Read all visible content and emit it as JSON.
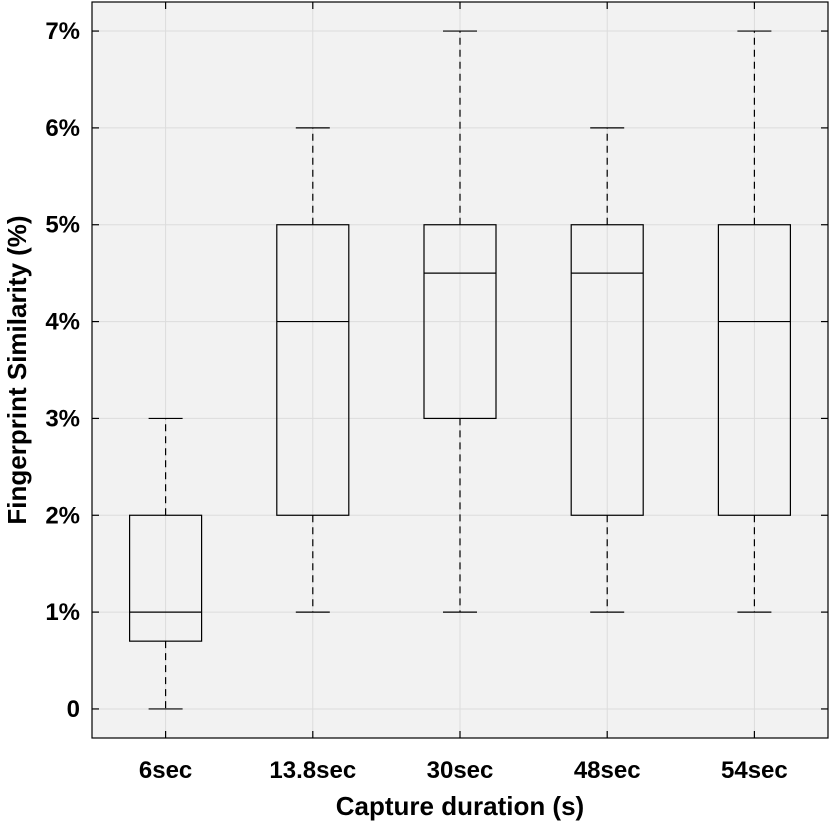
{
  "chart_data": {
    "type": "box",
    "xlabel": "Capture duration (s)",
    "ylabel": "Fingerprint Similarity (%)",
    "ylim": [
      -0.3,
      7.3
    ],
    "y_ticks": [
      0,
      1,
      2,
      3,
      4,
      5,
      6,
      7
    ],
    "y_tick_labels": [
      "0",
      "1%",
      "2%",
      "3%",
      "4%",
      "5%",
      "6%",
      "7%"
    ],
    "grid": true,
    "categories": [
      "6sec",
      "13.8sec",
      "30sec",
      "48sec",
      "54sec"
    ],
    "boxes": [
      {
        "category": "6sec",
        "min": 0,
        "q1": 0.7,
        "median": 1.0,
        "q3": 2.0,
        "max": 3.0
      },
      {
        "category": "13.8sec",
        "min": 1.0,
        "q1": 2.0,
        "median": 4.0,
        "q3": 5.0,
        "max": 6.0
      },
      {
        "category": "30sec",
        "min": 1.0,
        "q1": 3.0,
        "median": 4.5,
        "q3": 5.0,
        "max": 7.0
      },
      {
        "category": "48sec",
        "min": 1.0,
        "q1": 2.0,
        "median": 4.5,
        "q3": 5.0,
        "max": 6.0
      },
      {
        "category": "54sec",
        "min": 1.0,
        "q1": 2.0,
        "median": 4.0,
        "q3": 5.0,
        "max": 7.0
      }
    ],
    "colors": {
      "plot_background": "#f2f2f2",
      "grid": "#dcdcdc",
      "box": "#000000"
    }
  }
}
